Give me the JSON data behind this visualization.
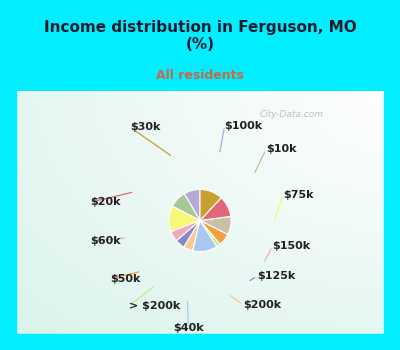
{
  "title": "Income distribution in Ferguson, MO\n(%)",
  "subtitle": "All residents",
  "title_color": "#1a1a2e",
  "subtitle_color": "#cc6644",
  "background_top": "#00eeff",
  "labels": [
    "$100k",
    "$10k",
    "$75k",
    "$150k",
    "$125k",
    "$200k",
    "$40k",
    "> $200k",
    "$50k",
    "$60k",
    "$20k",
    "$30k"
  ],
  "values": [
    8.5,
    9.0,
    13.5,
    5.5,
    5.0,
    5.0,
    13.0,
    2.0,
    6.5,
    9.5,
    11.0,
    12.0
  ],
  "colors": [
    "#b8a8d8",
    "#a8c898",
    "#f8f878",
    "#f0aab8",
    "#8888c8",
    "#f8c898",
    "#a8c8f0",
    "#c0f078",
    "#f0a040",
    "#c8c0a8",
    "#e06878",
    "#c8a030"
  ],
  "label_fontsize": 8,
  "label_color": "#222222",
  "figsize": [
    4.0,
    3.5
  ],
  "dpi": 100,
  "label_positions": {
    "$100k": [
      0.595,
      0.865,
      "left"
    ],
    "$10k": [
      0.755,
      0.775,
      "left"
    ],
    "$75k": [
      0.82,
      0.6,
      "left"
    ],
    "$150k": [
      0.78,
      0.4,
      "left"
    ],
    "$125k": [
      0.72,
      0.285,
      "left"
    ],
    "$200k": [
      0.665,
      0.175,
      "left"
    ],
    "$40k": [
      0.455,
      0.085,
      "center"
    ],
    "> $200k": [
      0.225,
      0.17,
      "left"
    ],
    "$50k": [
      0.155,
      0.275,
      "left"
    ],
    "$60k": [
      0.075,
      0.42,
      "left"
    ],
    "$20k": [
      0.075,
      0.57,
      "left"
    ],
    "$30k": [
      0.23,
      0.86,
      "left"
    ]
  }
}
